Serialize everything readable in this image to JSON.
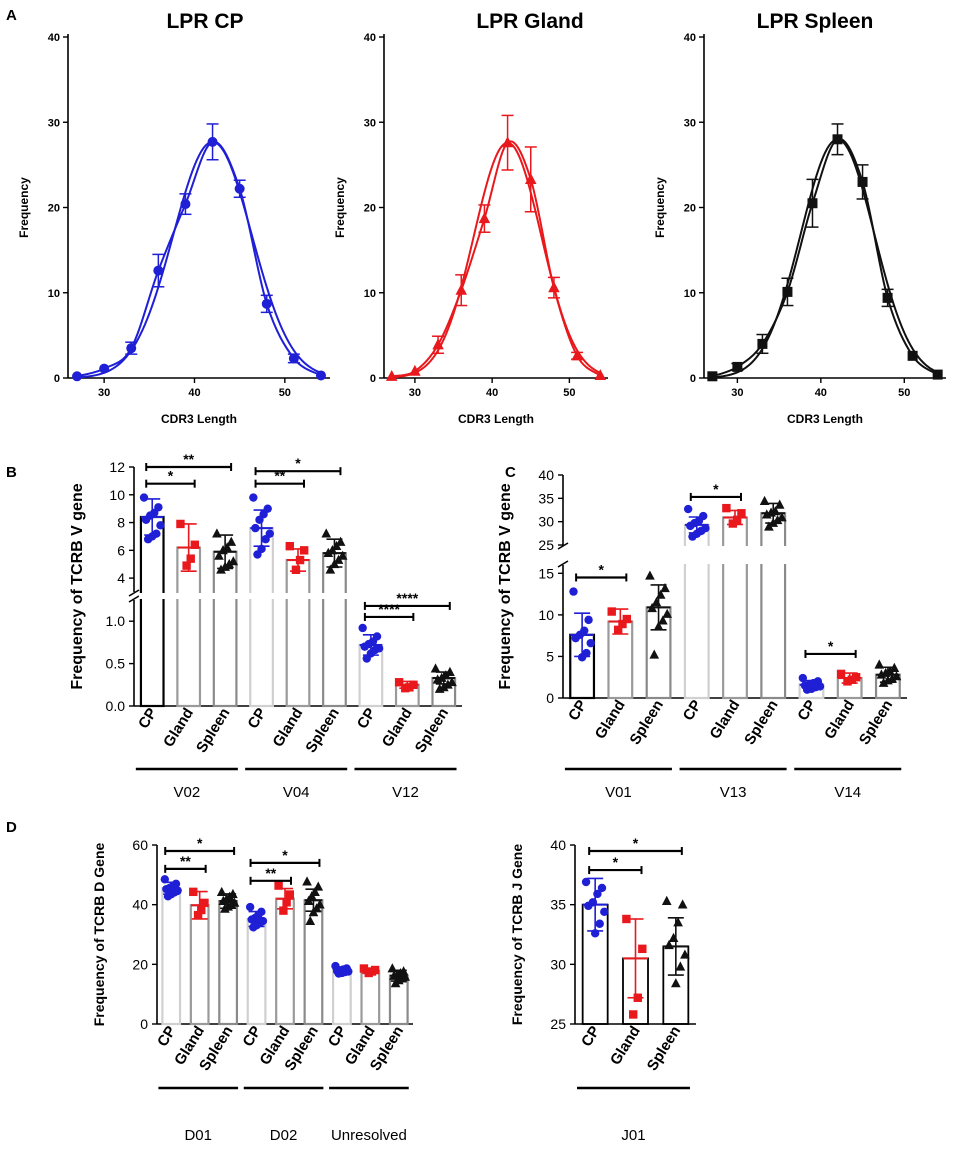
{
  "colors": {
    "cp": "#1f1fd6",
    "gland": "#e8181c",
    "spleen": "#111111",
    "cp_bar": "#d0d0d0",
    "gland_bar": "#9a9a9a",
    "spleen_bar": "#8a8a8a"
  },
  "panel_letters": [
    "A",
    "B",
    "C",
    "D"
  ],
  "chart_data": [
    {
      "id": "A1",
      "type": "line",
      "title": "LPR CP",
      "xlabel": "CDR3 Length",
      "ylabel": "Frequency",
      "xlim": [
        26,
        55
      ],
      "ylim": [
        0,
        40
      ],
      "xticks": [
        30,
        40,
        50
      ],
      "yticks": [
        0,
        10,
        20,
        30,
        40
      ],
      "color": "#1f1fd6",
      "marker": "circle",
      "series": [
        {
          "name": "LPR CP",
          "x": [
            27,
            30,
            33,
            36,
            39,
            42,
            45,
            48,
            51,
            54
          ],
          "y": [
            0.2,
            1.1,
            3.5,
            12.6,
            20.4,
            27.7,
            22.2,
            8.7,
            2.3,
            0.3
          ],
          "err": [
            0.2,
            0.3,
            0.7,
            1.9,
            1.2,
            2.1,
            1.0,
            1.0,
            0.5,
            0.1
          ]
        }
      ],
      "fit_peak": 42
    },
    {
      "id": "A2",
      "type": "line",
      "title": "LPR Gland",
      "xlabel": "CDR3 Length",
      "ylabel": "Frequency",
      "xlim": [
        26,
        55
      ],
      "ylim": [
        0,
        40
      ],
      "xticks": [
        30,
        40,
        50
      ],
      "yticks": [
        0,
        10,
        20,
        30,
        40
      ],
      "color": "#e8181c",
      "marker": "triangle",
      "series": [
        {
          "name": "LPR Gland",
          "x": [
            27,
            30,
            33,
            36,
            39,
            42,
            45,
            48,
            51,
            54
          ],
          "y": [
            0.2,
            0.8,
            3.9,
            10.3,
            18.7,
            27.6,
            23.3,
            10.6,
            2.6,
            0.3
          ],
          "err": [
            0.1,
            0.2,
            1.0,
            1.8,
            1.6,
            3.2,
            3.8,
            1.2,
            0.4,
            0.1
          ]
        }
      ],
      "fit_peak": 42
    },
    {
      "id": "A3",
      "type": "line",
      "title": "LPR Spleen",
      "xlabel": "CDR3 Length",
      "ylabel": "Frequency",
      "xlim": [
        26,
        55
      ],
      "ylim": [
        0,
        40
      ],
      "xticks": [
        30,
        40,
        50
      ],
      "yticks": [
        0,
        10,
        20,
        30,
        40
      ],
      "color": "#111111",
      "marker": "square",
      "series": [
        {
          "name": "LPR Spleen",
          "x": [
            27,
            30,
            33,
            36,
            39,
            42,
            45,
            48,
            51,
            54
          ],
          "y": [
            0.2,
            1.3,
            4.0,
            10.1,
            20.5,
            28.0,
            23.0,
            9.4,
            2.6,
            0.4
          ],
          "err": [
            0.1,
            0.4,
            1.1,
            1.6,
            2.8,
            1.8,
            2.0,
            1.0,
            0.2,
            0.1
          ]
        }
      ],
      "fit_peak": 42
    },
    {
      "id": "B",
      "type": "bar",
      "ylabel": "Frequency of TCRB V gene",
      "upper": {
        "ylim": [
          3,
          12
        ],
        "yticks": [
          4,
          6,
          8,
          10,
          12
        ]
      },
      "lower": {
        "ylim": [
          0,
          1.25
        ],
        "yticks": [
          0.0,
          0.5,
          1.0
        ],
        "yticklabels": [
          "0.0",
          "0.5",
          "1.0"
        ]
      },
      "categories": [
        "CP",
        "Gland",
        "Spleen",
        "CP",
        "Gland",
        "Spleen",
        "CP",
        "Gland",
        "Spleen"
      ],
      "groups": [
        "V02",
        "V04",
        "V12"
      ],
      "values": [
        8.4,
        6.2,
        5.9,
        7.6,
        5.3,
        5.8,
        0.72,
        0.25,
        0.33
      ],
      "errors": [
        1.3,
        1.7,
        1.2,
        1.3,
        0.8,
        1.0,
        0.12,
        0.04,
        0.07
      ],
      "points": [
        [
          9.8,
          9.1,
          8.7,
          8.5,
          8.2,
          7.8,
          7.2,
          7.0,
          6.8
        ],
        [
          7.9,
          6.4,
          5.4,
          4.9
        ],
        [
          7.2,
          6.6,
          6.2,
          6.0,
          5.6,
          5.2,
          5.0,
          4.8,
          4.6
        ],
        [
          9.8,
          9.0,
          8.6,
          8.2,
          7.6,
          7.2,
          6.8,
          6.1,
          5.7
        ],
        [
          6.3,
          6.0,
          5.3,
          4.6
        ],
        [
          7.2,
          6.6,
          6.3,
          6.0,
          5.8,
          5.6,
          5.3,
          5.0,
          4.6
        ],
        [
          0.92,
          0.82,
          0.76,
          0.73,
          0.7,
          0.68,
          0.66,
          0.62,
          0.56
        ],
        [
          0.28,
          0.25,
          0.22,
          0.21
        ],
        [
          0.44,
          0.4,
          0.36,
          0.33,
          0.31,
          0.28,
          0.25,
          0.22,
          0.2
        ]
      ],
      "significance": [
        {
          "from": 0,
          "to": 1,
          "label": "*",
          "y": 10.8
        },
        {
          "from": 0,
          "to": 2,
          "label": "**",
          "y": 12.0
        },
        {
          "from": 3,
          "to": 4,
          "label": "**",
          "y": 10.8
        },
        {
          "from": 3,
          "to": 5,
          "label": "*",
          "y": 11.7
        },
        {
          "from": 6,
          "to": 7,
          "label": "****",
          "y": 1.05
        },
        {
          "from": 6,
          "to": 8,
          "label": "****",
          "y": 1.18
        }
      ]
    },
    {
      "id": "C",
      "type": "bar",
      "ylabel": "Frequency of TCRB V gene",
      "upper": {
        "ylim": [
          25,
          40
        ],
        "yticks": [
          25,
          30,
          35,
          40
        ]
      },
      "lower": {
        "ylim": [
          0,
          16
        ],
        "yticks": [
          0,
          5,
          10,
          15
        ]
      },
      "categories": [
        "CP",
        "Gland",
        "Spleen",
        "CP",
        "Gland",
        "Spleen",
        "CP",
        "Gland",
        "Spleen"
      ],
      "groups": [
        "V01",
        "V13",
        "V14"
      ],
      "values": [
        7.6,
        9.2,
        10.9,
        29.3,
        30.9,
        31.8,
        1.6,
        2.4,
        2.8
      ],
      "errors": [
        2.6,
        1.5,
        2.7,
        1.7,
        1.5,
        2.1,
        0.5,
        0.6,
        0.9
      ],
      "points": [
        [
          12.8,
          9.4,
          8.1,
          7.6,
          7.2,
          6.6,
          5.4,
          4.9
        ],
        [
          10.4,
          9.5,
          8.9,
          8.2
        ],
        [
          14.7,
          13.2,
          12.4,
          11.5,
          10.8,
          10.1,
          9.3,
          8.6,
          5.2
        ],
        [
          32.7,
          31.2,
          30.2,
          29.7,
          29.1,
          28.6,
          28.0,
          27.4,
          26.8
        ],
        [
          32.9,
          31.8,
          30.4,
          29.6
        ],
        [
          34.4,
          33.6,
          32.2,
          31.9,
          31.5,
          30.9,
          30.3,
          29.7,
          28.9
        ],
        [
          2.4,
          2.0,
          1.8,
          1.6,
          1.5,
          1.4,
          1.3,
          1.1,
          1.0
        ],
        [
          2.9,
          2.5,
          2.2,
          2.0
        ],
        [
          4.0,
          3.6,
          3.2,
          3.0,
          2.8,
          2.6,
          2.3,
          2.1,
          1.8
        ]
      ],
      "significance": [
        {
          "from": 0,
          "to": 1,
          "label": "*",
          "y": 14.5
        },
        {
          "from": 3,
          "to": 4,
          "label": "*",
          "y": 35.3
        },
        {
          "from": 6,
          "to": 7,
          "label": "*",
          "y": 5.3
        }
      ]
    },
    {
      "id": "D1",
      "type": "bar",
      "ylabel": "Frequency  of TCRB D Gene",
      "ylim": [
        0,
        60
      ],
      "yticks": [
        0,
        20,
        40,
        60
      ],
      "categories": [
        "CP",
        "Gland",
        "Spleen",
        "CP",
        "Gland",
        "Spleen",
        "CP",
        "Gland",
        "Spleen"
      ],
      "groups": [
        "D01",
        "D02",
        "Unresolved"
      ],
      "values": [
        45.5,
        39.8,
        41.2,
        35.2,
        42.0,
        41.5,
        18.0,
        17.8,
        16.2
      ],
      "errors": [
        2.0,
        4.6,
        2.4,
        2.5,
        3.4,
        3.7,
        0.8,
        0.8,
        1.8
      ],
      "points": [
        [
          48.5,
          47.0,
          46.2,
          45.6,
          45.2,
          44.7,
          44.1,
          43.5,
          42.8
        ],
        [
          44.3,
          40.6,
          38.2,
          36.5
        ],
        [
          44.2,
          43.5,
          42.6,
          41.8,
          41.2,
          40.6,
          40.0,
          39.3,
          38.6
        ],
        [
          39.2,
          37.6,
          36.4,
          35.5,
          35.0,
          34.5,
          33.8,
          33.1,
          32.4
        ],
        [
          46.4,
          43.4,
          40.8,
          38.0
        ],
        [
          47.7,
          46.0,
          44.2,
          42.8,
          41.2,
          40.0,
          38.7,
          37.4,
          34.5
        ],
        [
          19.4,
          18.6,
          18.3,
          18.0,
          17.8,
          17.6,
          17.4,
          17.1,
          16.9
        ],
        [
          18.6,
          18.1,
          17.6,
          17.1
        ],
        [
          18.6,
          17.6,
          17.0,
          16.5,
          16.1,
          15.8,
          15.2,
          14.6,
          13.6
        ]
      ],
      "significance": [
        {
          "from": 0,
          "to": 1,
          "label": "**",
          "y": 52
        },
        {
          "from": 0,
          "to": 2,
          "label": "*",
          "y": 58
        },
        {
          "from": 3,
          "to": 4,
          "label": "**",
          "y": 48
        },
        {
          "from": 3,
          "to": 5,
          "label": "*",
          "y": 54
        }
      ]
    },
    {
      "id": "D2",
      "type": "bar",
      "ylabel": "Frequency of TCRB J Gene",
      "ylim": [
        25,
        40
      ],
      "yticks": [
        25,
        30,
        35,
        40
      ],
      "categories": [
        "CP",
        "Gland",
        "Spleen"
      ],
      "groups": [
        "J01"
      ],
      "values": [
        35.0,
        30.5,
        31.5
      ],
      "errors": [
        2.2,
        3.3,
        2.4
      ],
      "points": [
        [
          36.9,
          36.4,
          35.9,
          35.2,
          34.9,
          34.4,
          33.4,
          32.6
        ],
        [
          33.8,
          31.3,
          27.2,
          25.8
        ],
        [
          35.3,
          35.0,
          33.5,
          32.2,
          31.6,
          30.8,
          29.8,
          28.4
        ]
      ],
      "significance": [
        {
          "from": 0,
          "to": 1,
          "label": "*",
          "y": 37.9
        },
        {
          "from": 0,
          "to": 2,
          "label": "*",
          "y": 39.5
        }
      ]
    }
  ]
}
